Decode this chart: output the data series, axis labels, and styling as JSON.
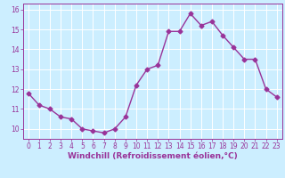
{
  "hours": [
    0,
    1,
    2,
    3,
    4,
    5,
    6,
    7,
    8,
    9,
    10,
    11,
    12,
    13,
    14,
    15,
    16,
    17,
    18,
    19,
    20,
    21,
    22,
    23
  ],
  "values": [
    11.8,
    11.2,
    11.0,
    10.6,
    10.5,
    10.0,
    9.9,
    9.8,
    10.0,
    10.6,
    12.2,
    13.0,
    13.2,
    14.9,
    14.9,
    15.8,
    15.2,
    15.4,
    14.7,
    14.1,
    13.5,
    13.5,
    12.0,
    11.6
  ],
  "line_color": "#993399",
  "marker": "D",
  "marker_size": 2.5,
  "bg_color": "#cceeff",
  "grid_color": "#ffffff",
  "xlabel": "Windchill (Refroidissement éolien,°C)",
  "xlim": [
    -0.5,
    23.5
  ],
  "ylim": [
    9.5,
    16.3
  ],
  "yticks": [
    10,
    11,
    12,
    13,
    14,
    15,
    16
  ],
  "xticks": [
    0,
    1,
    2,
    3,
    4,
    5,
    6,
    7,
    8,
    9,
    10,
    11,
    12,
    13,
    14,
    15,
    16,
    17,
    18,
    19,
    20,
    21,
    22,
    23
  ],
  "tick_color": "#993399",
  "label_color": "#993399",
  "tick_fontsize": 5.5,
  "xlabel_fontsize": 6.5,
  "line_width": 1.0
}
